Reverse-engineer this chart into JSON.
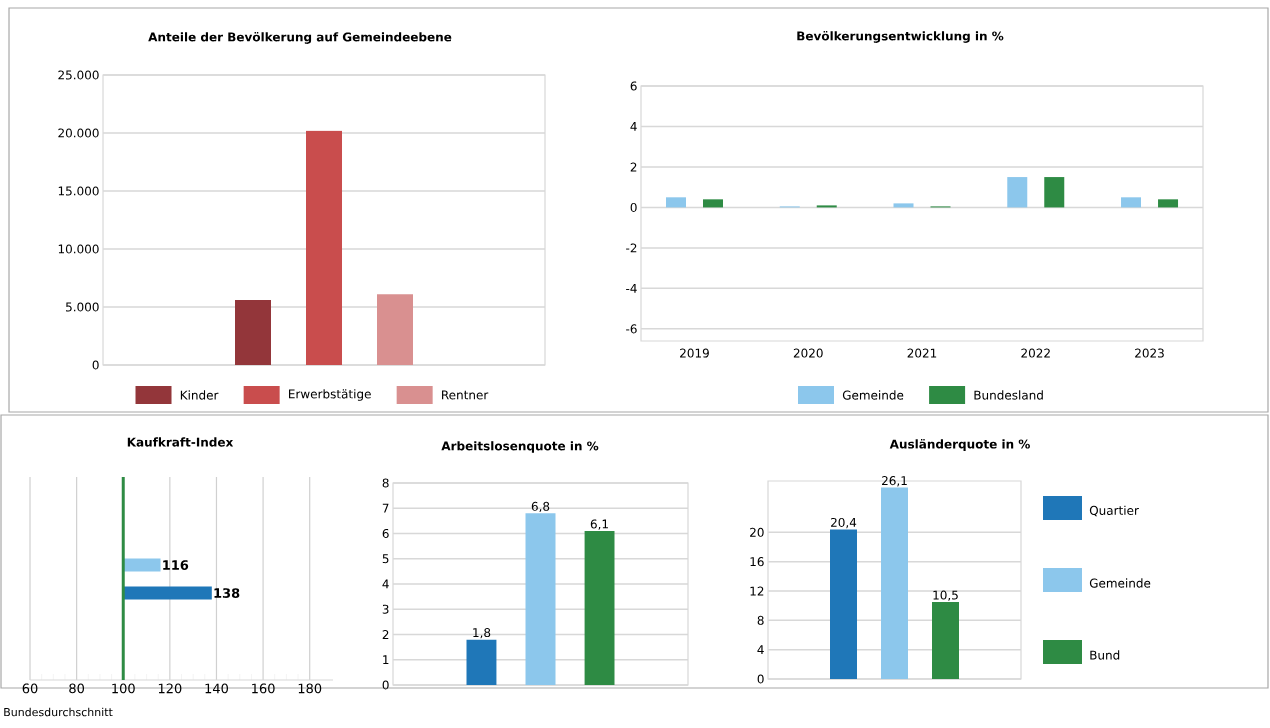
{
  "chart_data": [
    {
      "type": "bar",
      "title": "Anteile der Bevölkerung auf Gemeindeebene",
      "categories": [
        null
      ],
      "series": [
        {
          "name": "Kinder",
          "color": "#93363a",
          "values": [
            5600
          ]
        },
        {
          "name": "Erwerbstätige",
          "color": "#c94d4d",
          "values": [
            20200
          ]
        },
        {
          "name": "Rentner",
          "color": "#d99090",
          "values": [
            6100
          ]
        }
      ],
      "ylim": [
        0,
        25000
      ],
      "yticks": [
        0,
        {
          "value": 5000,
          "label": "5.000"
        },
        {
          "value": 10000,
          "label": "10.000"
        },
        {
          "value": 15000,
          "label": "15.000"
        },
        {
          "value": 20000,
          "label": "20.000"
        },
        {
          "value": 25000,
          "label": "25.000"
        }
      ],
      "grid": "y",
      "legend": "bottom"
    },
    {
      "type": "bar",
      "title": "Bevölkerungsentwicklung in %",
      "categories": [
        "2019",
        "2020",
        "2021",
        "2022",
        "2023"
      ],
      "series": [
        {
          "name": "Gemeinde",
          "color": "#8cc7ec",
          "values": [
            0.5,
            0.05,
            0.2,
            1.5,
            0.5
          ]
        },
        {
          "name": "Bundesland",
          "color": "#2e8b44",
          "values": [
            0.4,
            0.1,
            0.05,
            1.5,
            0.4
          ]
        }
      ],
      "ylim": [
        -6.6,
        6
      ],
      "yticks": [
        -6,
        -4,
        -2,
        0,
        2,
        4,
        6
      ],
      "grid": "y",
      "legend": "bottom"
    },
    {
      "type": "bar",
      "orientation": "horizontal",
      "title": "Kaufkraft-Index",
      "categories": [
        null,
        null
      ],
      "values": [
        16,
        38
      ],
      "base": [
        100,
        100
      ],
      "colors": [
        "#8cc7ec",
        "#1f77b8"
      ],
      "value_labels": [
        "116",
        "138"
      ],
      "xlim": [
        60,
        190
      ],
      "xticks": [
        60,
        80,
        100,
        120,
        140,
        160,
        180
      ],
      "grid": "x",
      "ref_lines": [
        {
          "axis": "x",
          "value": 100,
          "label": "Bundesdurchschnitt",
          "color": "#2e8b44"
        }
      ]
    },
    {
      "type": "bar",
      "title": "Arbeitslosenquote in %",
      "categories": [
        null,
        null,
        null
      ],
      "values": [
        1.8,
        6.8,
        6.1
      ],
      "colors": [
        "#1f77b8",
        "#8cc7ec",
        "#2e8b44"
      ],
      "value_labels": [
        "1,8",
        "6,8",
        "6,1"
      ],
      "ylim": [
        0,
        8
      ],
      "yticks": [
        0,
        1,
        2,
        3,
        4,
        5,
        6,
        7,
        8
      ],
      "grid": "y"
    },
    {
      "type": "bar",
      "title": "Ausländerquote in %",
      "categories": [
        null
      ],
      "series": [
        {
          "name": "Quartier",
          "color": "#1f77b8",
          "values": [
            20.4
          ],
          "value_labels": [
            "20,4"
          ]
        },
        {
          "name": "Gemeinde",
          "color": "#8cc7ec",
          "values": [
            26.1
          ],
          "value_labels": [
            "26,1"
          ]
        },
        {
          "name": "Bund",
          "color": "#2e8b44",
          "values": [
            10.5
          ],
          "value_labels": [
            "10,5"
          ]
        }
      ],
      "ylim": [
        0,
        27
      ],
      "yticks": [
        0,
        4,
        8,
        12,
        16,
        20
      ],
      "grid": "y",
      "legend": "right"
    }
  ]
}
